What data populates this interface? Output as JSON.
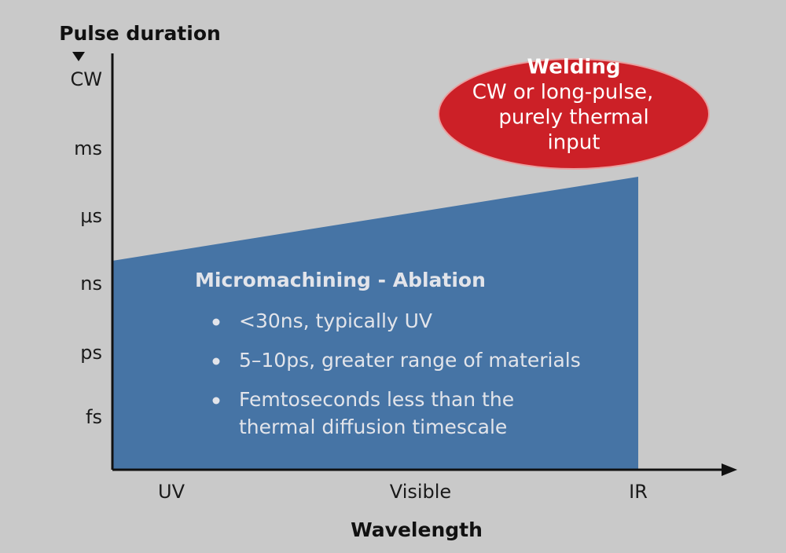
{
  "y_axis": {
    "label": "Pulse duration",
    "ticks": [
      "CW",
      "ms",
      "μs",
      "ns",
      "ps",
      "fs"
    ]
  },
  "x_axis": {
    "label": "Wavelength",
    "ticks": [
      "UV",
      "Visible",
      "IR"
    ]
  },
  "welding": {
    "title": "Welding",
    "lines": [
      "CW or long-pulse,",
      "purely thermal",
      "input"
    ]
  },
  "ablation": {
    "title": "Micromachining - Ablation",
    "bullets": [
      [
        "<30ns, typically UV"
      ],
      [
        "5–10ps, greater range of materials"
      ],
      [
        "Femtoseconds less than the",
        "thermal diffusion timescale"
      ]
    ]
  }
}
